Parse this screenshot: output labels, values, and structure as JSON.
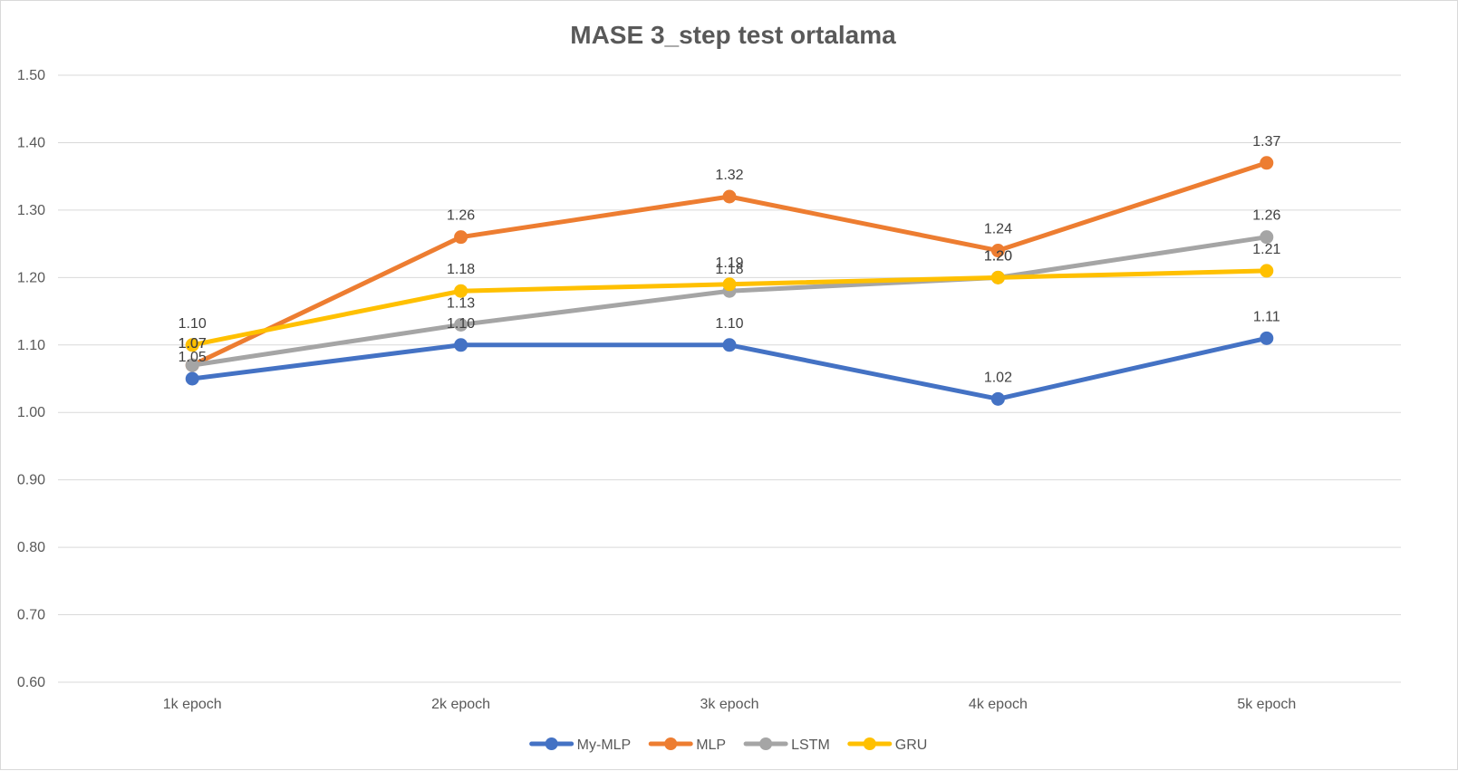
{
  "chart_data": {
    "type": "line",
    "title": "MASE 3_step test ortalama",
    "xlabel": "",
    "ylabel": "",
    "categories": [
      "1k epoch",
      "2k epoch",
      "3k epoch",
      "4k epoch",
      "5k epoch"
    ],
    "ylim": [
      0.6,
      1.5
    ],
    "yticks": [
      "0.60",
      "0.70",
      "0.80",
      "0.90",
      "1.00",
      "1.10",
      "1.20",
      "1.30",
      "1.40",
      "1.50"
    ],
    "grid": true,
    "legend_position": "bottom",
    "series": [
      {
        "name": "My-MLP",
        "color": "#4472C4",
        "values": [
          1.05,
          1.1,
          1.1,
          1.02,
          1.11
        ],
        "labels": [
          "1.05",
          "1.10",
          "1.10",
          "1.02",
          "1.11"
        ]
      },
      {
        "name": "MLP",
        "color": "#ED7D31",
        "values": [
          1.07,
          1.26,
          1.32,
          1.24,
          1.37
        ],
        "labels": [
          "1.07",
          "1.26",
          "1.32",
          "1.24",
          "1.37"
        ]
      },
      {
        "name": "LSTM",
        "color": "#A5A5A5",
        "values": [
          1.07,
          1.13,
          1.18,
          1.2,
          1.26
        ],
        "labels": [
          "1.07",
          "1.13",
          "1.18",
          "1.20",
          "1.26"
        ]
      },
      {
        "name": "GRU",
        "color": "#FFC000",
        "values": [
          1.1,
          1.18,
          1.19,
          1.2,
          1.21
        ],
        "labels": [
          "1.10",
          "1.18",
          "1.19",
          "1.20",
          "1.21"
        ]
      }
    ]
  }
}
